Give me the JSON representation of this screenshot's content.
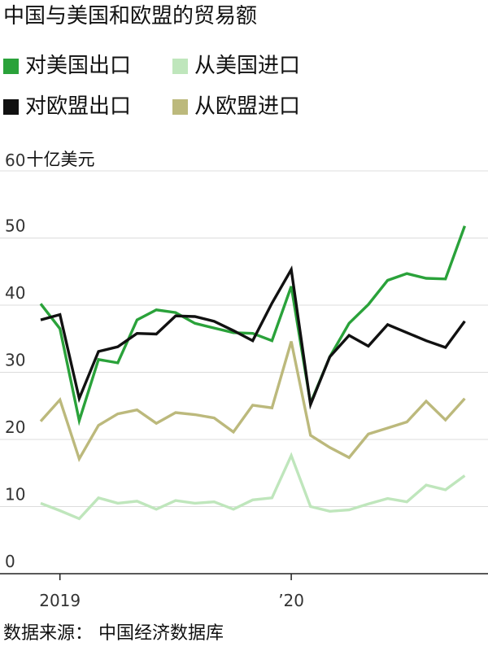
{
  "title": "中国与美国和欧盟的贸易额",
  "legend": [
    {
      "label": "对美国出口",
      "color": "#2aa23a"
    },
    {
      "label": "从美国进口",
      "color": "#bfe6bc"
    },
    {
      "label": "对欧盟出口",
      "color": "#111111"
    },
    {
      "label": "从欧盟进口",
      "color": "#bcb97c"
    }
  ],
  "unit_label": "十亿美元",
  "source": "数据来源： 中国经济数据库",
  "chart_data": {
    "type": "line",
    "x": [
      "2018-12",
      "2019-01",
      "2019-02",
      "2019-03",
      "2019-04",
      "2019-05",
      "2019-06",
      "2019-07",
      "2019-08",
      "2019-09",
      "2019-10",
      "2019-11",
      "2019-12",
      "2020-01",
      "2020-02",
      "2020-03",
      "2020-04",
      "2020-05",
      "2020-06",
      "2020-07",
      "2020-08",
      "2020-09",
      "2020-10",
      "2020-11"
    ],
    "x_ticks": [
      {
        "x": "2019-01",
        "label": "2019"
      },
      {
        "x": "2020-01",
        "label": "’20"
      }
    ],
    "y_ticks": [
      0,
      10,
      20,
      30,
      40,
      50,
      60
    ],
    "y_tick_labels": [
      "0",
      "10",
      "20",
      "30",
      "40",
      "50",
      "60"
    ],
    "ylim": [
      0,
      60
    ],
    "grid": true,
    "series": [
      {
        "name": "对美国出口",
        "color": "#2aa23a",
        "values": [
          40.2,
          36.5,
          22.8,
          31.9,
          31.4,
          37.8,
          39.3,
          38.9,
          37.3,
          36.6,
          35.9,
          35.8,
          34.7,
          42.8,
          25.4,
          32.3,
          37.3,
          40.1,
          43.7,
          44.7,
          44.0,
          43.9,
          51.8,
          null
        ],
        "x_offset": 0
      },
      {
        "name": "从美国进口",
        "color": "#bfe6bc",
        "values": [
          10.5,
          9.4,
          8.2,
          11.3,
          10.5,
          10.8,
          9.6,
          10.9,
          10.5,
          10.7,
          9.6,
          11.0,
          11.3,
          17.6,
          10.0,
          9.3,
          9.5,
          10.4,
          11.2,
          10.7,
          13.2,
          12.5,
          14.6,
          null
        ],
        "x_offset": 0
      },
      {
        "name": "对欧盟出口",
        "color": "#111111",
        "values": [
          37.8,
          38.6,
          26.1,
          33.1,
          33.8,
          35.8,
          35.7,
          38.4,
          38.3,
          37.6,
          36.2,
          34.7,
          40.3,
          45.3,
          25.2,
          32.3,
          35.5,
          33.9,
          37.1,
          35.9,
          34.7,
          33.7,
          37.6,
          null
        ],
        "x_offset": 0
      },
      {
        "name": "从欧盟进口",
        "color": "#bcb97c",
        "values": [
          22.7,
          25.9,
          17.1,
          22.1,
          23.8,
          24.4,
          22.4,
          24.0,
          23.7,
          23.2,
          21.1,
          25.1,
          24.7,
          34.6,
          20.6,
          18.8,
          17.3,
          20.8,
          21.7,
          22.6,
          25.7,
          22.9,
          26.1,
          null
        ],
        "x_offset": 0
      }
    ]
  }
}
